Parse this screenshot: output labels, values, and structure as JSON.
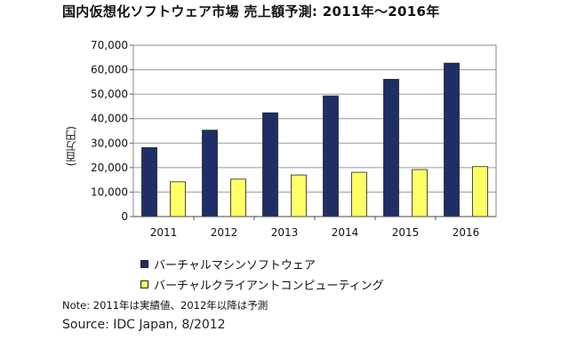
{
  "chart_data": {
    "type": "bar",
    "title": "国内仮想化ソフトウェア市場 売上額予測: 2011年～2016年",
    "ylabel": "(百万円)",
    "xlabel": "",
    "categories": [
      "2011",
      "2012",
      "2013",
      "2014",
      "2015",
      "2016"
    ],
    "ylim": [
      0,
      70000
    ],
    "yticks": [
      "0",
      "10,000",
      "20,000",
      "30,000",
      "40,000",
      "50,000",
      "60,000",
      "70,000"
    ],
    "grid": true,
    "legend_position": "bottom",
    "series": [
      {
        "name": "バーチャルマシンソフトウェア",
        "color": "#1F2F66",
        "values": [
          28200,
          35300,
          42400,
          49300,
          56100,
          62700
        ]
      },
      {
        "name": "バーチャルクライアントコンピューティング",
        "color": "#FFFF66",
        "values": [
          14200,
          15300,
          17000,
          18100,
          19200,
          20400
        ]
      }
    ]
  },
  "footer": {
    "note": "Note: 2011年は実績値、2012年以降は予測",
    "source": "Source: IDC Japan, 8/2012"
  }
}
